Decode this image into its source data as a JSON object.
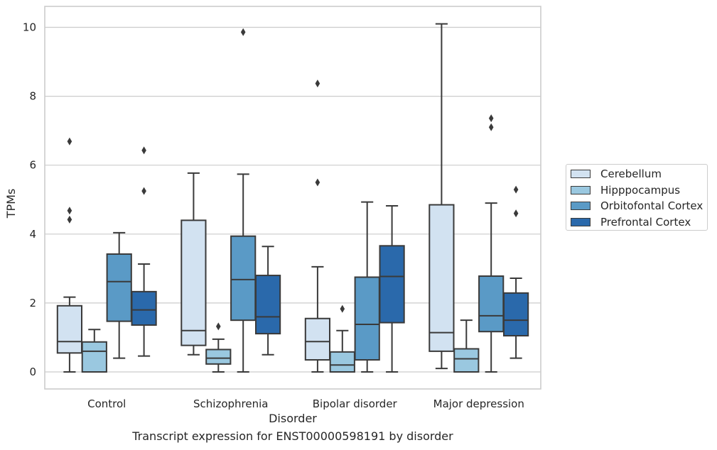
{
  "caption": "Transcript expression for ENST00000598191 by disorder",
  "chart_data": {
    "type": "boxplot",
    "xlabel": "Disorder",
    "ylabel": "TPMs",
    "ylim": [
      -0.5,
      10.6
    ],
    "yticks": [
      0,
      2,
      4,
      6,
      8,
      10
    ],
    "grid": "horizontal",
    "legend_position": "right",
    "categories": [
      "Control",
      "Schizophrenia",
      "Bipolar disorder",
      "Major depression"
    ],
    "series": [
      {
        "name": "Cerebellum",
        "color": "#d2e2f1",
        "boxes": [
          {
            "whisker_low": 0.0,
            "q1": 0.55,
            "median": 0.88,
            "q3": 1.92,
            "whisker_high": 2.17,
            "outliers": [
              4.42,
              4.68,
              6.69
            ]
          },
          {
            "whisker_low": 0.5,
            "q1": 0.77,
            "median": 1.2,
            "q3": 4.4,
            "whisker_high": 5.77,
            "outliers": []
          },
          {
            "whisker_low": 0.0,
            "q1": 0.35,
            "median": 0.88,
            "q3": 1.55,
            "whisker_high": 3.05,
            "outliers": [
              5.5,
              8.37
            ]
          },
          {
            "whisker_low": 0.1,
            "q1": 0.6,
            "median": 1.14,
            "q3": 4.85,
            "whisker_high": 10.1,
            "outliers": []
          }
        ]
      },
      {
        "name": "Hipppocampus",
        "color": "#9ac8e0",
        "boxes": [
          {
            "whisker_low": 0.0,
            "q1": 0.0,
            "median": 0.6,
            "q3": 0.87,
            "whisker_high": 1.23,
            "outliers": []
          },
          {
            "whisker_low": 0.0,
            "q1": 0.23,
            "median": 0.4,
            "q3": 0.65,
            "whisker_high": 0.95,
            "outliers": [
              1.32
            ]
          },
          {
            "whisker_low": 0.0,
            "q1": 0.0,
            "median": 0.2,
            "q3": 0.58,
            "whisker_high": 1.2,
            "outliers": [
              1.83
            ]
          },
          {
            "whisker_low": 0.0,
            "q1": 0.0,
            "median": 0.38,
            "q3": 0.67,
            "whisker_high": 1.5,
            "outliers": []
          }
        ]
      },
      {
        "name": "Orbitofontal Cortex",
        "color": "#5a9ac6",
        "boxes": [
          {
            "whisker_low": 0.4,
            "q1": 1.47,
            "median": 2.62,
            "q3": 3.42,
            "whisker_high": 4.04,
            "outliers": []
          },
          {
            "whisker_low": 0.0,
            "q1": 1.5,
            "median": 2.68,
            "q3": 3.94,
            "whisker_high": 5.74,
            "outliers": [
              9.86
            ]
          },
          {
            "whisker_low": 0.0,
            "q1": 0.35,
            "median": 1.38,
            "q3": 2.75,
            "whisker_high": 4.93,
            "outliers": []
          },
          {
            "whisker_low": 0.0,
            "q1": 1.17,
            "median": 1.63,
            "q3": 2.78,
            "whisker_high": 4.9,
            "outliers": [
              7.1,
              7.36
            ]
          }
        ]
      },
      {
        "name": "Prefrontal Cortex",
        "color": "#2a69ab",
        "boxes": [
          {
            "whisker_low": 0.46,
            "q1": 1.36,
            "median": 1.8,
            "q3": 2.33,
            "whisker_high": 3.13,
            "outliers": [
              5.25,
              6.43
            ]
          },
          {
            "whisker_low": 0.5,
            "q1": 1.11,
            "median": 1.6,
            "q3": 2.8,
            "whisker_high": 3.64,
            "outliers": []
          },
          {
            "whisker_low": 0.0,
            "q1": 1.43,
            "median": 2.77,
            "q3": 3.66,
            "whisker_high": 4.82,
            "outliers": []
          },
          {
            "whisker_low": 0.4,
            "q1": 1.05,
            "median": 1.5,
            "q3": 2.29,
            "whisker_high": 2.72,
            "outliers": [
              4.6,
              5.29
            ]
          }
        ]
      }
    ]
  }
}
